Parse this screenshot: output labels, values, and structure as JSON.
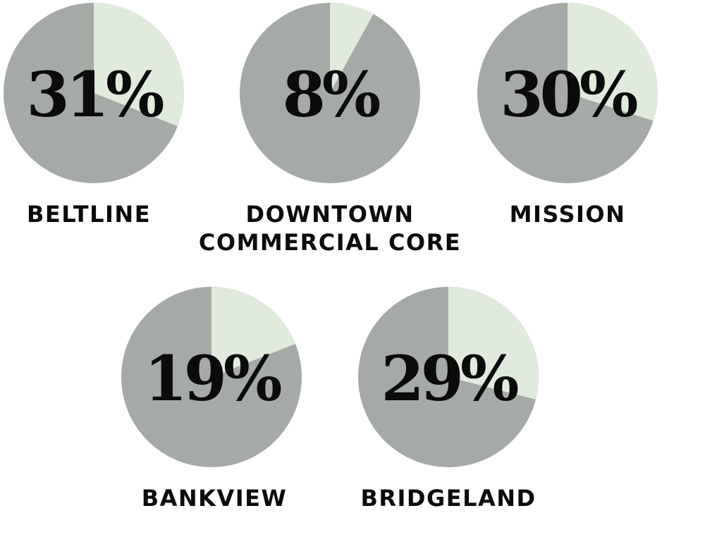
{
  "chart_data": [
    {
      "type": "pie",
      "label_lines": [
        "BELTLINE"
      ],
      "value_text": "31%",
      "value": 31
    },
    {
      "type": "pie",
      "label_lines": [
        "DOWNTOWN",
        "COMMERCIAL CORE"
      ],
      "value_text": "8%",
      "value": 8
    },
    {
      "type": "pie",
      "label_lines": [
        "MISSION"
      ],
      "value_text": "30%",
      "value": 30
    },
    {
      "type": "pie",
      "label_lines": [
        "BANKVIEW"
      ],
      "value_text": "19%",
      "value": 19
    },
    {
      "type": "pie",
      "label_lines": [
        "BRIDGELAND"
      ],
      "value_text": "29%",
      "value": 29
    }
  ],
  "colors": {
    "highlight_slice": "#e0ebde",
    "remainder_slice": "#a5aaa7",
    "text": "#0b0b0b"
  }
}
